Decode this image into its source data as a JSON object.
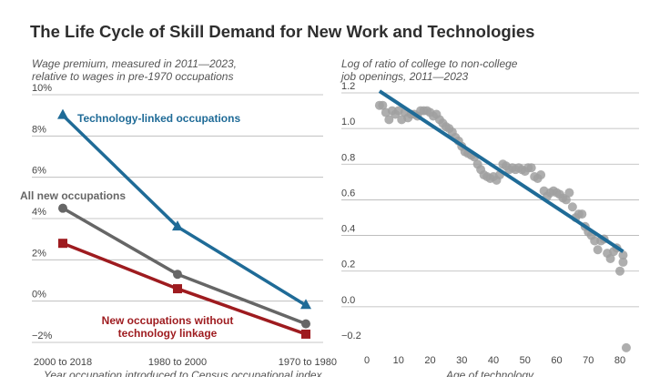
{
  "title": "The Life Cycle of Skill Demand for New Work and Technologies",
  "chart_data": [
    {
      "type": "line",
      "ylabel_lines": [
        "Wage premium, measured in 2011—2023,",
        "relative to wages in pre-1970 occupations"
      ],
      "xlabel": "Year occupation introduced to Census occupational index",
      "categories": [
        "2000 to 2018",
        "1980 to 2000",
        "1970 to 1980"
      ],
      "ylim": [
        -2,
        10
      ],
      "yticks": [
        "−2%",
        "0%",
        "2%",
        "4%",
        "6%",
        "8%",
        "10%"
      ],
      "ytick_values": [
        -2,
        0,
        2,
        4,
        6,
        8,
        10
      ],
      "grid": true,
      "series": [
        {
          "name": "Technology-linked occupations",
          "values": [
            9.0,
            3.6,
            -0.2
          ],
          "color": "#1f6b97",
          "marker": "triangle"
        },
        {
          "name": "All new occupations",
          "values": [
            4.5,
            1.3,
            -1.1
          ],
          "color": "#666666",
          "marker": "circle"
        },
        {
          "name": "New occupations without technology linkage",
          "label_lines": [
            "New occupations without",
            "technology linkage"
          ],
          "values": [
            2.8,
            0.6,
            -1.6
          ],
          "color": "#9e1b1f",
          "marker": "square"
        }
      ]
    },
    {
      "type": "scatter",
      "ylabel_lines": [
        "Log of ratio of college to non-college",
        "job openings, 2011—2023"
      ],
      "xlabel": "Age of technology",
      "xticks": [
        0,
        10,
        20,
        30,
        40,
        50,
        60,
        70,
        80
      ],
      "xlim": [
        -2,
        84
      ],
      "ylim": [
        -0.2,
        1.2
      ],
      "yticks": [
        "−0.2",
        "0.0",
        "0.2",
        "0.4",
        "0.6",
        "0.8",
        "1.0",
        "1.2"
      ],
      "ytick_values": [
        -0.2,
        0.0,
        0.2,
        0.4,
        0.6,
        0.8,
        1.0,
        1.2
      ],
      "grid": true,
      "point_color": "#a0a0a0",
      "fit_color": "#1f6b97",
      "fit_line": {
        "x": [
          4,
          81
        ],
        "y": [
          1.21,
          0.31
        ]
      },
      "points": [
        [
          4,
          1.13
        ],
        [
          5,
          1.13
        ],
        [
          6,
          1.09
        ],
        [
          7,
          1.05
        ],
        [
          8,
          1.1
        ],
        [
          9,
          1.08
        ],
        [
          10,
          1.1
        ],
        [
          11,
          1.05
        ],
        [
          12,
          1.09
        ],
        [
          13,
          1.06
        ],
        [
          14,
          1.08
        ],
        [
          15,
          1.08
        ],
        [
          16,
          1.07
        ],
        [
          17,
          1.1
        ],
        [
          18,
          1.1
        ],
        [
          19,
          1.1
        ],
        [
          20,
          1.09
        ],
        [
          21,
          1.07
        ],
        [
          22,
          1.08
        ],
        [
          23,
          1.05
        ],
        [
          24,
          1.03
        ],
        [
          25,
          1.01
        ],
        [
          26,
          1.0
        ],
        [
          27,
          0.98
        ],
        [
          28,
          0.95
        ],
        [
          29,
          0.93
        ],
        [
          30,
          0.9
        ],
        [
          31,
          0.87
        ],
        [
          32,
          0.86
        ],
        [
          33,
          0.85
        ],
        [
          34,
          0.84
        ],
        [
          35,
          0.8
        ],
        [
          36,
          0.77
        ],
        [
          37,
          0.74
        ],
        [
          38,
          0.73
        ],
        [
          39,
          0.72
        ],
        [
          40,
          0.73
        ],
        [
          41,
          0.71
        ],
        [
          42,
          0.74
        ],
        [
          43,
          0.8
        ],
        [
          44,
          0.79
        ],
        [
          45,
          0.77
        ],
        [
          46,
          0.78
        ],
        [
          47,
          0.77
        ],
        [
          48,
          0.78
        ],
        [
          49,
          0.77
        ],
        [
          50,
          0.76
        ],
        [
          51,
          0.78
        ],
        [
          52,
          0.78
        ],
        [
          53,
          0.73
        ],
        [
          54,
          0.72
        ],
        [
          55,
          0.74
        ],
        [
          56,
          0.65
        ],
        [
          57,
          0.62
        ],
        [
          58,
          0.64
        ],
        [
          59,
          0.65
        ],
        [
          60,
          0.64
        ],
        [
          61,
          0.63
        ],
        [
          62,
          0.61
        ],
        [
          63,
          0.6
        ],
        [
          64,
          0.64
        ],
        [
          65,
          0.56
        ],
        [
          66,
          0.5
        ],
        [
          67,
          0.52
        ],
        [
          68,
          0.52
        ],
        [
          69,
          0.45
        ],
        [
          70,
          0.42
        ],
        [
          71,
          0.4
        ],
        [
          72,
          0.37
        ],
        [
          73,
          0.32
        ],
        [
          74,
          0.37
        ],
        [
          75,
          0.38
        ],
        [
          76,
          0.3
        ],
        [
          77,
          0.27
        ],
        [
          78,
          0.31
        ],
        [
          79,
          0.33
        ],
        [
          80,
          0.2
        ],
        [
          81,
          0.25
        ],
        [
          81,
          0.29
        ],
        [
          82,
          -0.23
        ]
      ]
    }
  ]
}
